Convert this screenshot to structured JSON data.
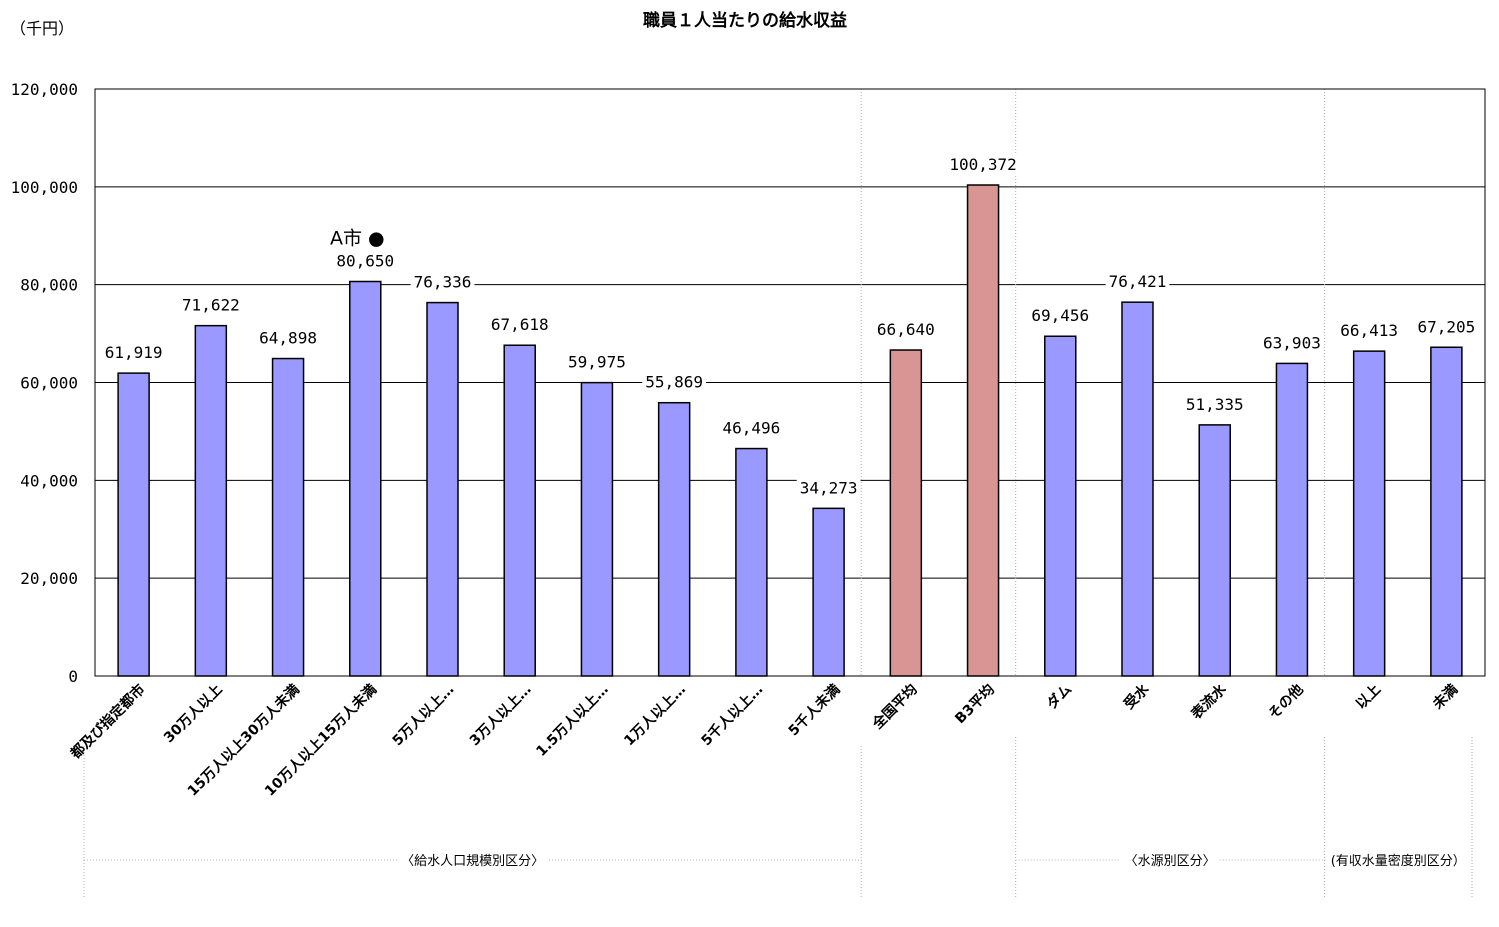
{
  "chart_data": {
    "type": "bar",
    "title": "職員１人当たりの給水収益",
    "unit_label": "（千円）",
    "ylim": [
      0,
      120000
    ],
    "yticks": [
      0,
      20000,
      40000,
      60000,
      80000,
      100000,
      120000
    ],
    "ytick_labels": [
      "0",
      "20,000",
      "40,000",
      "60,000",
      "80,000",
      "100,000",
      "120,000"
    ],
    "grid": true,
    "categories": [
      "都及び指定都市",
      "30万人以上",
      "15万人以上30万人未満",
      "10万人以上15万人未満",
      "5万人以上…",
      "3万人以上…",
      "1.5万人以上…",
      "1万人以上…",
      "5千人以上…",
      "5千人未満",
      "全国平均",
      "B3平均",
      "ダム",
      "受水",
      "表流水",
      "その他",
      "以上",
      "未満"
    ],
    "values": [
      61919,
      71622,
      64898,
      80650,
      76336,
      67618,
      59975,
      55869,
      46496,
      34273,
      66640,
      100372,
      69456,
      76421,
      51335,
      63903,
      66413,
      67205
    ],
    "value_labels": [
      "61,919",
      "71,622",
      "64,898",
      "80,650",
      "76,336",
      "67,618",
      "59,975",
      "55,869",
      "46,496",
      "34,273",
      "66,640",
      "100,372",
      "69,456",
      "76,421",
      "51,335",
      "63,903",
      "66,413",
      "67,205"
    ],
    "bar_colors": [
      "#9999ff",
      "#9999ff",
      "#9999ff",
      "#9999ff",
      "#9999ff",
      "#9999ff",
      "#9999ff",
      "#9999ff",
      "#9999ff",
      "#9999ff",
      "#d99594",
      "#d99594",
      "#9999ff",
      "#9999ff",
      "#9999ff",
      "#9999ff",
      "#9999ff",
      "#9999ff"
    ],
    "groups": [
      {
        "label": "〈給水人口規模別区分〉",
        "from": 0,
        "to": 9
      },
      {
        "label": "〈水源別区分〉",
        "from": 12,
        "to": 15
      },
      {
        "label": "(有収水量密度別区分）",
        "from": 16,
        "to": 17
      }
    ],
    "annotation": {
      "text": "A市 ●",
      "category_index": 3
    }
  }
}
